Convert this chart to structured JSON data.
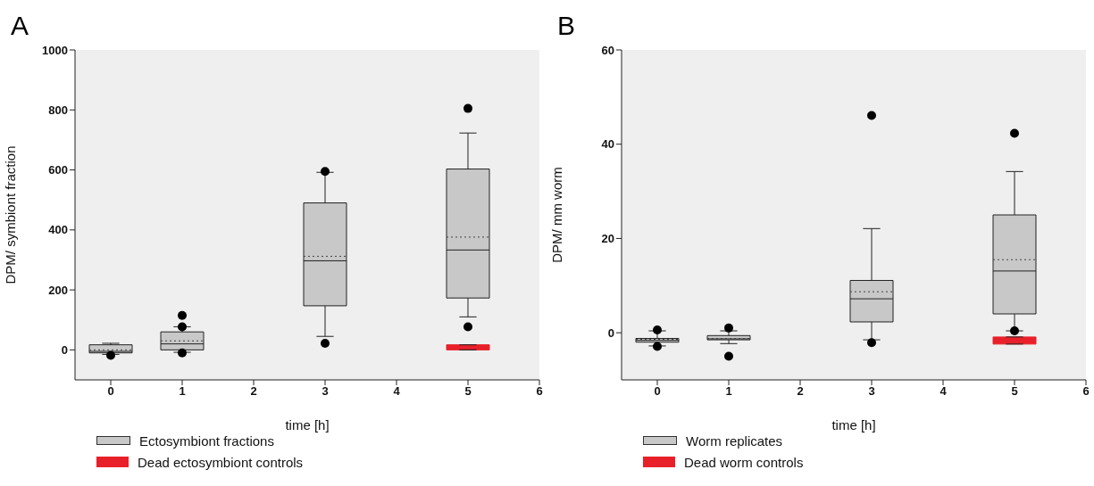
{
  "chart_data": [
    {
      "type": "box",
      "title": "A",
      "xlabel": "time [h]",
      "ylabel": "DPM/ symbiont fraction",
      "xlim": [
        -0.5,
        6
      ],
      "xticks": [
        0,
        1,
        2,
        3,
        4,
        5,
        6
      ],
      "ylim": [
        -100,
        1000
      ],
      "yticks": [
        0,
        200,
        400,
        600,
        800,
        1000
      ],
      "legend": "bottom left",
      "series": [
        {
          "name": "Ectosymbiont fractions",
          "color": "#c8c8c8",
          "x": [
            0,
            1,
            3,
            5
          ],
          "boxes": [
            {
              "low": -15,
              "q1": -10,
              "median": -5,
              "q3": 17,
              "high": 22,
              "mean": 0,
              "outliers": [
                -18
              ]
            },
            {
              "low": -8,
              "q1": 0,
              "median": 20,
              "q3": 60,
              "high": 77,
              "mean": 30,
              "outliers": [
                115,
                77,
                -10
              ]
            },
            {
              "low": 45,
              "q1": 147,
              "median": 297,
              "q3": 490,
              "high": 592,
              "mean": 312,
              "outliers": [
                22,
                595
              ]
            },
            {
              "low": 110,
              "q1": 173,
              "median": 333,
              "q3": 603,
              "high": 723,
              "mean": 376,
              "outliers": [
                805,
                77
              ]
            }
          ]
        },
        {
          "name": "Dead ectosymbiont controls",
          "color": "#e8202a",
          "x": [
            5
          ],
          "boxes": [
            {
              "low": 0,
              "q1": 0,
              "median": 8,
              "q3": 17,
              "high": 17
            }
          ]
        }
      ]
    },
    {
      "type": "box",
      "title": "B",
      "xlabel": "time [h]",
      "ylabel": "DPM/ mm worm",
      "xlim": [
        -0.5,
        6
      ],
      "xticks": [
        0,
        1,
        2,
        3,
        4,
        5,
        6
      ],
      "ylim": [
        -10,
        60
      ],
      "yticks": [
        0,
        20,
        40,
        60
      ],
      "legend": "bottom left",
      "series": [
        {
          "name": "Worm replicates",
          "color": "#c8c8c8",
          "x": [
            0,
            1,
            3,
            5
          ],
          "boxes": [
            {
              "low": -2.8,
              "q1": -2,
              "median": -1.6,
              "q3": -1.2,
              "high": 0.4,
              "mean": -1.4,
              "outliers": [
                0.6,
                -2.9
              ]
            },
            {
              "low": -2.3,
              "q1": -1.5,
              "median": -1.3,
              "q3": -0.6,
              "high": 0.4,
              "mean": -1.2,
              "outliers": [
                1,
                -5
              ]
            },
            {
              "low": -1.5,
              "q1": 2.3,
              "median": 7.2,
              "q3": 11.1,
              "high": 22.1,
              "mean": 8.7,
              "outliers": [
                46.1,
                -2.1
              ]
            },
            {
              "low": 0.4,
              "q1": 4,
              "median": 13.1,
              "q3": 25,
              "high": 34.2,
              "mean": 15.5,
              "outliers": [
                42.3,
                0.4
              ]
            }
          ]
        },
        {
          "name": "Dead worm controls",
          "color": "#e8202a",
          "x": [
            5
          ],
          "boxes": [
            {
              "low": -2.4,
              "q1": -2.4,
              "median": -1.6,
              "q3": -0.9,
              "high": -0.9
            }
          ]
        }
      ]
    }
  ]
}
